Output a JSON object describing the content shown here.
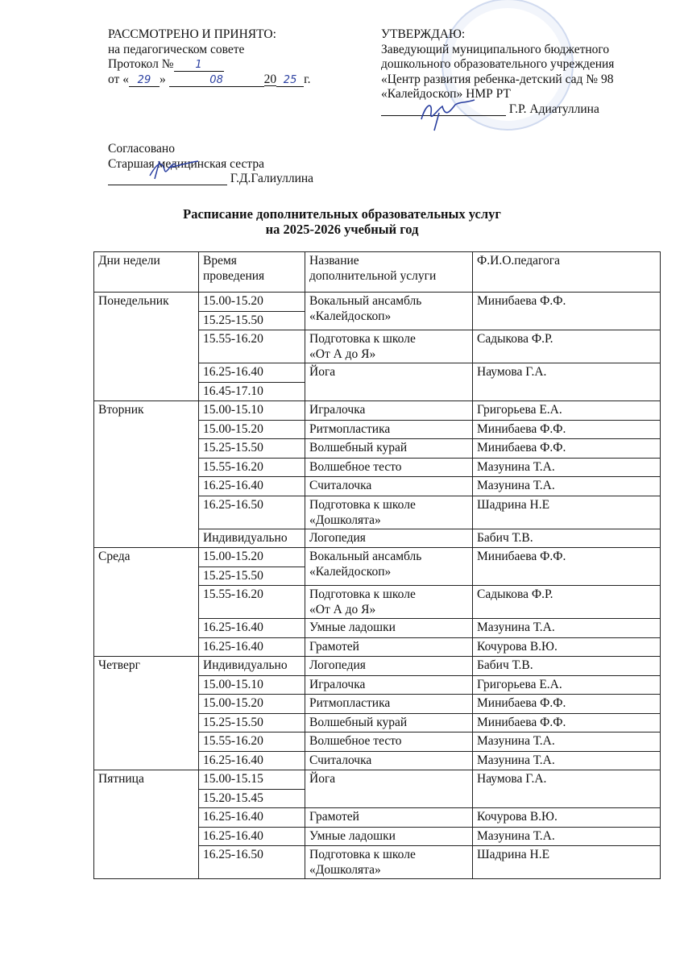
{
  "approved_left": {
    "heading": "РАССМОТРЕНО И ПРИНЯТО:",
    "line1": "на педагогическом совете",
    "protocol_label": "Протокол №",
    "protocol_no": "1",
    "date_prefix": "от «",
    "day": "29",
    "date_mid": "»",
    "month": "08",
    "year_prefix": "20",
    "year_suffix": "25",
    "year_end": "г."
  },
  "approved_right": {
    "heading": "УТВЕРЖДАЮ:",
    "line1": "Заведующий муниципального бюджетного",
    "line2": "дошкольного образовательного учреждения",
    "line3": "«Центр развития ребенка-детский сад № 98",
    "line4": "«Калейдоскоп» НМР РТ",
    "signer": "Г.Р. Адиатуллина"
  },
  "agreed": {
    "heading": "Согласовано",
    "role": "Старшая медицинская сестра",
    "signer": "Г.Д.Галиуллина"
  },
  "title": {
    "line1": "Расписание дополнительных образовательных услуг",
    "line2": "на 2025-2026 учебный год"
  },
  "table": {
    "headers": [
      "Дни недели",
      "Время\nпроведения",
      "Название\nдополнительной услуги",
      "Ф.И.О.педагога"
    ],
    "rows": [
      {
        "day": "Понедельник",
        "daySpan": 5,
        "time": "15.00-15.20",
        "service": "Вокальный ансамбль\n«Калейдоскоп»",
        "span": 2,
        "teacher": "Минибаева Ф.Ф."
      },
      {
        "time": "15.25-15.50"
      },
      {
        "time": "15.55-16.20",
        "service": "Подготовка к школе\n«От А до Я»",
        "span": 1,
        "teacher": "Садыкова Ф.Р."
      },
      {
        "time": "16.25-16.40",
        "service": "Йога",
        "span": 2,
        "teacher": "Наумова Г.А."
      },
      {
        "time": "16.45-17.10"
      },
      {
        "day": "Вторник",
        "daySpan": 7,
        "time": "15.00-15.10",
        "service": "Игралочка",
        "span": 1,
        "teacher": "Григорьева Е.А."
      },
      {
        "time": "15.00-15.20",
        "service": "Ритмопластика",
        "span": 1,
        "teacher": "Минибаева Ф.Ф."
      },
      {
        "time": "15.25-15.50",
        "service": "Волшебный курай",
        "span": 1,
        "teacher": "Минибаева Ф.Ф."
      },
      {
        "time": "15.55-16.20",
        "service": "Волшебное тесто",
        "span": 1,
        "teacher": "Мазунина Т.А."
      },
      {
        "time": "16.25-16.40",
        "service": "Считалочка",
        "span": 1,
        "teacher": "Мазунина Т.А."
      },
      {
        "time": "16.25-16.50",
        "service": "Подготовка к школе\n«Дошколята»",
        "span": 1,
        "teacher": "Шадрина Н.Е"
      },
      {
        "time": "Индивидуально",
        "service": "Логопедия",
        "span": 1,
        "teacher": "Бабич Т.В."
      },
      {
        "day": "Среда",
        "daySpan": 5,
        "time": "15.00-15.20",
        "service": "Вокальный ансамбль\n«Калейдоскоп»",
        "span": 2,
        "teacher": "Минибаева Ф.Ф."
      },
      {
        "time": "15.25-15.50"
      },
      {
        "time": "15.55-16.20",
        "service": "Подготовка к школе\n«От А до Я»",
        "span": 1,
        "teacher": "Садыкова Ф.Р."
      },
      {
        "time": "16.25-16.40",
        "service": "Умные ладошки",
        "span": 1,
        "teacher": "Мазунина Т.А."
      },
      {
        "time": "16.25-16.40",
        "service": "Грамотей",
        "span": 1,
        "teacher": "Кочурова В.Ю."
      },
      {
        "day": "Четверг",
        "daySpan": 6,
        "time": "Индивидуально",
        "service": "Логопедия",
        "span": 1,
        "teacher": "Бабич Т.В."
      },
      {
        "time": "15.00-15.10",
        "service": "Игралочка",
        "span": 1,
        "teacher": "Григорьева Е.А."
      },
      {
        "time": "15.00-15.20",
        "service": "Ритмопластика",
        "span": 1,
        "teacher": "Минибаева Ф.Ф."
      },
      {
        "time": "15.25-15.50",
        "service": "Волшебный курай",
        "span": 1,
        "teacher": "Минибаева Ф.Ф."
      },
      {
        "time": "15.55-16.20",
        "service": "Волшебное тесто",
        "span": 1,
        "teacher": "Мазунина Т.А."
      },
      {
        "time": "16.25-16.40",
        "service": "Считалочка",
        "span": 1,
        "teacher": "Мазунина Т.А."
      },
      {
        "day": "Пятница",
        "daySpan": 5,
        "time": "15.00-15.15",
        "service": "Йога",
        "span": 2,
        "teacher": "Наумова Г.А."
      },
      {
        "time": "15.20-15.45"
      },
      {
        "time": "16.25-16.40",
        "service": "Грамотей",
        "span": 1,
        "teacher": "Кочурова В.Ю."
      },
      {
        "time": "16.25-16.40",
        "service": "Умные ладошки",
        "span": 1,
        "teacher": "Мазунина Т.А."
      },
      {
        "time": "16.25-16.50",
        "service": "Подготовка к школе\n«Дошколята»",
        "span": 1,
        "teacher": "Шадрина Н.Е"
      }
    ]
  }
}
